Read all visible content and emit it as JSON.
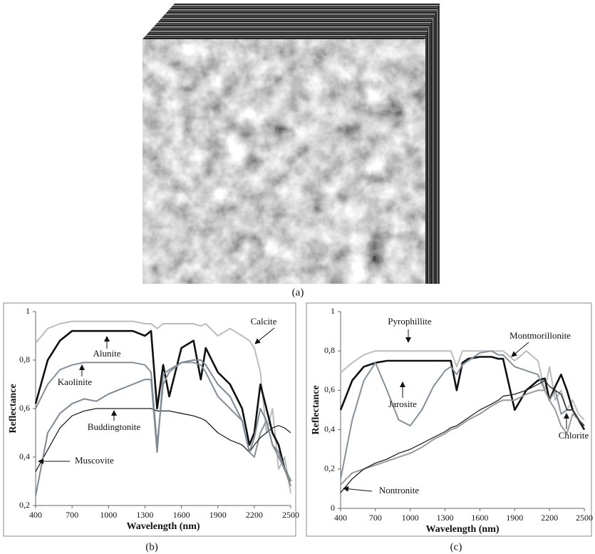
{
  "image_caption": "(a)",
  "chart_data": [
    {
      "type": "line",
      "caption": "(b)",
      "x_label": "Wavelength (nm)",
      "y_label": "Reflectance",
      "x": [
        400,
        500,
        600,
        700,
        800,
        900,
        1000,
        1100,
        1200,
        1300,
        1350,
        1400,
        1450,
        1500,
        1600,
        1700,
        1760,
        1800,
        1900,
        2000,
        2100,
        2160,
        2200,
        2250,
        2300,
        2350,
        2400,
        2450,
        2500
      ],
      "xlim": [
        400,
        2500
      ],
      "xticks": [
        400,
        700,
        1000,
        1300,
        1600,
        1900,
        2200,
        2500
      ],
      "ylim": [
        0.2,
        1
      ],
      "yticks": [
        {
          "value": 0.2,
          "label": "0,2"
        },
        {
          "value": 0.4,
          "label": "0,4"
        },
        {
          "value": 0.6,
          "label": "0,6"
        },
        {
          "value": 0.8,
          "label": "0,8"
        },
        1
      ],
      "series": [
        {
          "name": "Calcite",
          "color": "#bcbcbc",
          "values": [
            0.87,
            0.93,
            0.95,
            0.96,
            0.96,
            0.96,
            0.96,
            0.96,
            0.96,
            0.95,
            0.95,
            0.93,
            0.95,
            0.95,
            0.95,
            0.95,
            0.94,
            0.95,
            0.9,
            0.93,
            0.9,
            0.88,
            0.85,
            0.75,
            0.5,
            0.6,
            0.35,
            0.4,
            0.25
          ]
        },
        {
          "name": "Alunite",
          "color": "#111111",
          "values": [
            0.62,
            0.8,
            0.88,
            0.92,
            0.92,
            0.92,
            0.92,
            0.92,
            0.92,
            0.9,
            0.92,
            0.6,
            0.78,
            0.65,
            0.85,
            0.88,
            0.72,
            0.85,
            0.75,
            0.7,
            0.6,
            0.45,
            0.5,
            0.7,
            0.6,
            0.5,
            0.45,
            0.35,
            0.3
          ]
        },
        {
          "name": "Kaolinite",
          "color": "#85909a",
          "values": [
            0.6,
            0.7,
            0.76,
            0.78,
            0.79,
            0.79,
            0.79,
            0.79,
            0.79,
            0.78,
            0.75,
            0.45,
            0.7,
            0.75,
            0.79,
            0.79,
            0.78,
            0.75,
            0.65,
            0.6,
            0.55,
            0.42,
            0.4,
            0.5,
            0.55,
            0.45,
            0.4,
            0.35,
            0.3
          ]
        },
        {
          "name": "Buddingtonite",
          "color": "#222222",
          "values": [
            0.34,
            0.43,
            0.52,
            0.57,
            0.59,
            0.6,
            0.6,
            0.6,
            0.6,
            0.6,
            0.6,
            0.59,
            0.59,
            0.59,
            0.58,
            0.57,
            0.56,
            0.55,
            0.5,
            0.47,
            0.45,
            0.42,
            0.45,
            0.48,
            0.5,
            0.52,
            0.53,
            0.52,
            0.5
          ]
        },
        {
          "name": "Muscovite",
          "color": "#7d8994",
          "values": [
            0.24,
            0.5,
            0.58,
            0.62,
            0.64,
            0.63,
            0.66,
            0.68,
            0.7,
            0.72,
            0.72,
            0.42,
            0.74,
            0.76,
            0.79,
            0.8,
            0.8,
            0.78,
            0.7,
            0.65,
            0.55,
            0.42,
            0.48,
            0.6,
            0.55,
            0.45,
            0.42,
            0.35,
            0.28
          ]
        }
      ]
    },
    {
      "type": "line",
      "caption": "(c)",
      "x_label": "Wavelength (nm)",
      "y_label": "Reflectance",
      "x": [
        400,
        500,
        600,
        700,
        800,
        900,
        1000,
        1100,
        1200,
        1300,
        1350,
        1400,
        1450,
        1500,
        1600,
        1700,
        1760,
        1800,
        1900,
        2000,
        2100,
        2160,
        2200,
        2250,
        2300,
        2350,
        2400,
        2450,
        2500
      ],
      "xlim": [
        400,
        2500
      ],
      "xticks": [
        400,
        700,
        1000,
        1300,
        1600,
        1900,
        2200,
        2500
      ],
      "ylim": [
        0,
        1
      ],
      "yticks": [
        0,
        {
          "value": 0.2,
          "label": "0,2"
        },
        {
          "value": 0.4,
          "label": "0,4"
        },
        {
          "value": 0.6,
          "label": "0,6"
        },
        {
          "value": 0.8,
          "label": "0,8"
        },
        1
      ],
      "series": [
        {
          "name": "Pyrophillite",
          "color": "#bcbcbc",
          "values": [
            0.69,
            0.74,
            0.78,
            0.8,
            0.8,
            0.8,
            0.8,
            0.8,
            0.8,
            0.8,
            0.8,
            0.72,
            0.8,
            0.8,
            0.8,
            0.8,
            0.8,
            0.8,
            0.75,
            0.8,
            0.75,
            0.6,
            0.72,
            0.55,
            0.6,
            0.5,
            0.55,
            0.48,
            0.45
          ]
        },
        {
          "name": "Montmorillonite",
          "color": "#111111",
          "values": [
            0.5,
            0.65,
            0.72,
            0.74,
            0.75,
            0.75,
            0.75,
            0.75,
            0.75,
            0.75,
            0.75,
            0.6,
            0.74,
            0.76,
            0.77,
            0.77,
            0.76,
            0.76,
            0.5,
            0.6,
            0.65,
            0.66,
            0.55,
            0.62,
            0.68,
            0.6,
            0.5,
            0.45,
            0.4
          ]
        },
        {
          "name": "Jarosite",
          "color": "#85909a",
          "values": [
            0.15,
            0.45,
            0.65,
            0.74,
            0.6,
            0.45,
            0.42,
            0.5,
            0.62,
            0.7,
            0.72,
            0.68,
            0.73,
            0.75,
            0.79,
            0.8,
            0.78,
            0.78,
            0.72,
            0.7,
            0.68,
            0.6,
            0.55,
            0.6,
            0.48,
            0.5,
            0.5,
            0.45,
            0.42
          ]
        },
        {
          "name": "Chlorite",
          "color": "#9a9a9a",
          "values": [
            0.12,
            0.18,
            0.2,
            0.22,
            0.24,
            0.26,
            0.28,
            0.31,
            0.35,
            0.38,
            0.4,
            0.41,
            0.43,
            0.45,
            0.48,
            0.52,
            0.54,
            0.55,
            0.55,
            0.58,
            0.6,
            0.6,
            0.55,
            0.5,
            0.42,
            0.38,
            0.48,
            0.45,
            0.42
          ]
        },
        {
          "name": "Nontronite",
          "color": "#222222",
          "values": [
            0.08,
            0.15,
            0.2,
            0.23,
            0.25,
            0.28,
            0.3,
            0.33,
            0.36,
            0.39,
            0.41,
            0.42,
            0.44,
            0.46,
            0.5,
            0.53,
            0.55,
            0.57,
            0.58,
            0.6,
            0.63,
            0.65,
            0.62,
            0.6,
            0.58,
            0.5,
            0.5,
            0.45,
            0.42
          ]
        }
      ]
    }
  ]
}
